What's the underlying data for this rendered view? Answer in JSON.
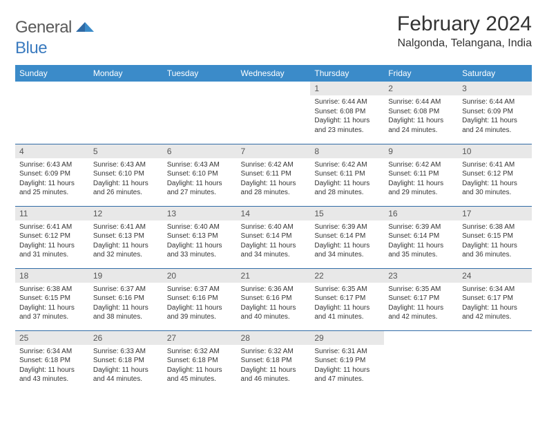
{
  "logo": {
    "general": "General",
    "blue": "Blue"
  },
  "title": "February 2024",
  "location": "Nalgonda, Telangana, India",
  "colors": {
    "header_bg": "#3b8bc9",
    "header_text": "#ffffff",
    "daynum_bg": "#e8e8e8",
    "rule": "#2f6aa5",
    "logo_gray": "#5a5a5a",
    "logo_blue": "#3b7bbf"
  },
  "day_headers": [
    "Sunday",
    "Monday",
    "Tuesday",
    "Wednesday",
    "Thursday",
    "Friday",
    "Saturday"
  ],
  "weeks": [
    [
      null,
      null,
      null,
      null,
      {
        "n": "1",
        "sr": "6:44 AM",
        "ss": "6:08 PM",
        "dl": "11 hours and 23 minutes."
      },
      {
        "n": "2",
        "sr": "6:44 AM",
        "ss": "6:08 PM",
        "dl": "11 hours and 24 minutes."
      },
      {
        "n": "3",
        "sr": "6:44 AM",
        "ss": "6:09 PM",
        "dl": "11 hours and 24 minutes."
      }
    ],
    [
      {
        "n": "4",
        "sr": "6:43 AM",
        "ss": "6:09 PM",
        "dl": "11 hours and 25 minutes."
      },
      {
        "n": "5",
        "sr": "6:43 AM",
        "ss": "6:10 PM",
        "dl": "11 hours and 26 minutes."
      },
      {
        "n": "6",
        "sr": "6:43 AM",
        "ss": "6:10 PM",
        "dl": "11 hours and 27 minutes."
      },
      {
        "n": "7",
        "sr": "6:42 AM",
        "ss": "6:11 PM",
        "dl": "11 hours and 28 minutes."
      },
      {
        "n": "8",
        "sr": "6:42 AM",
        "ss": "6:11 PM",
        "dl": "11 hours and 28 minutes."
      },
      {
        "n": "9",
        "sr": "6:42 AM",
        "ss": "6:11 PM",
        "dl": "11 hours and 29 minutes."
      },
      {
        "n": "10",
        "sr": "6:41 AM",
        "ss": "6:12 PM",
        "dl": "11 hours and 30 minutes."
      }
    ],
    [
      {
        "n": "11",
        "sr": "6:41 AM",
        "ss": "6:12 PM",
        "dl": "11 hours and 31 minutes."
      },
      {
        "n": "12",
        "sr": "6:41 AM",
        "ss": "6:13 PM",
        "dl": "11 hours and 32 minutes."
      },
      {
        "n": "13",
        "sr": "6:40 AM",
        "ss": "6:13 PM",
        "dl": "11 hours and 33 minutes."
      },
      {
        "n": "14",
        "sr": "6:40 AM",
        "ss": "6:14 PM",
        "dl": "11 hours and 34 minutes."
      },
      {
        "n": "15",
        "sr": "6:39 AM",
        "ss": "6:14 PM",
        "dl": "11 hours and 34 minutes."
      },
      {
        "n": "16",
        "sr": "6:39 AM",
        "ss": "6:14 PM",
        "dl": "11 hours and 35 minutes."
      },
      {
        "n": "17",
        "sr": "6:38 AM",
        "ss": "6:15 PM",
        "dl": "11 hours and 36 minutes."
      }
    ],
    [
      {
        "n": "18",
        "sr": "6:38 AM",
        "ss": "6:15 PM",
        "dl": "11 hours and 37 minutes."
      },
      {
        "n": "19",
        "sr": "6:37 AM",
        "ss": "6:16 PM",
        "dl": "11 hours and 38 minutes."
      },
      {
        "n": "20",
        "sr": "6:37 AM",
        "ss": "6:16 PM",
        "dl": "11 hours and 39 minutes."
      },
      {
        "n": "21",
        "sr": "6:36 AM",
        "ss": "6:16 PM",
        "dl": "11 hours and 40 minutes."
      },
      {
        "n": "22",
        "sr": "6:35 AM",
        "ss": "6:17 PM",
        "dl": "11 hours and 41 minutes."
      },
      {
        "n": "23",
        "sr": "6:35 AM",
        "ss": "6:17 PM",
        "dl": "11 hours and 42 minutes."
      },
      {
        "n": "24",
        "sr": "6:34 AM",
        "ss": "6:17 PM",
        "dl": "11 hours and 42 minutes."
      }
    ],
    [
      {
        "n": "25",
        "sr": "6:34 AM",
        "ss": "6:18 PM",
        "dl": "11 hours and 43 minutes."
      },
      {
        "n": "26",
        "sr": "6:33 AM",
        "ss": "6:18 PM",
        "dl": "11 hours and 44 minutes."
      },
      {
        "n": "27",
        "sr": "6:32 AM",
        "ss": "6:18 PM",
        "dl": "11 hours and 45 minutes."
      },
      {
        "n": "28",
        "sr": "6:32 AM",
        "ss": "6:18 PM",
        "dl": "11 hours and 46 minutes."
      },
      {
        "n": "29",
        "sr": "6:31 AM",
        "ss": "6:19 PM",
        "dl": "11 hours and 47 minutes."
      },
      null,
      null
    ]
  ],
  "labels": {
    "sunrise": "Sunrise: ",
    "sunset": "Sunset: ",
    "daylight": "Daylight: "
  }
}
